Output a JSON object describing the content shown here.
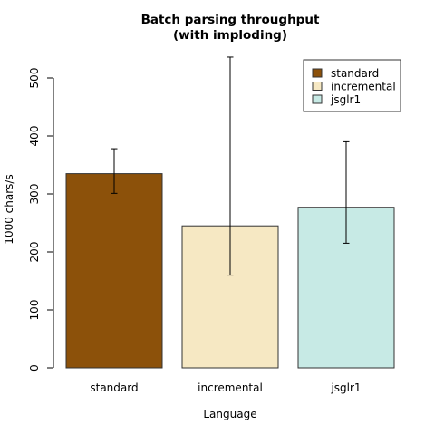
{
  "chart_data": {
    "type": "bar",
    "title_lines": [
      "Batch parsing throughput",
      "(with imploding)"
    ],
    "xlabel": "Language",
    "ylabel": "1000 chars/s",
    "categories": [
      "standard",
      "incremental",
      "jsglr1"
    ],
    "values": [
      335,
      245,
      277
    ],
    "error_low": [
      301,
      160,
      215
    ],
    "error_high": [
      378,
      536,
      390
    ],
    "colors": [
      "#8C510A",
      "#F6E8C3",
      "#C7EAE5"
    ],
    "ylim": [
      0,
      500
    ],
    "yticks": [
      0,
      100,
      200,
      300,
      400,
      500
    ],
    "legend": {
      "position": "top-right",
      "entries": [
        {
          "label": "standard",
          "color": "#8C510A"
        },
        {
          "label": "incremental",
          "color": "#F6E8C3"
        },
        {
          "label": "jsglr1",
          "color": "#C7EAE5"
        }
      ]
    },
    "grid": false
  }
}
